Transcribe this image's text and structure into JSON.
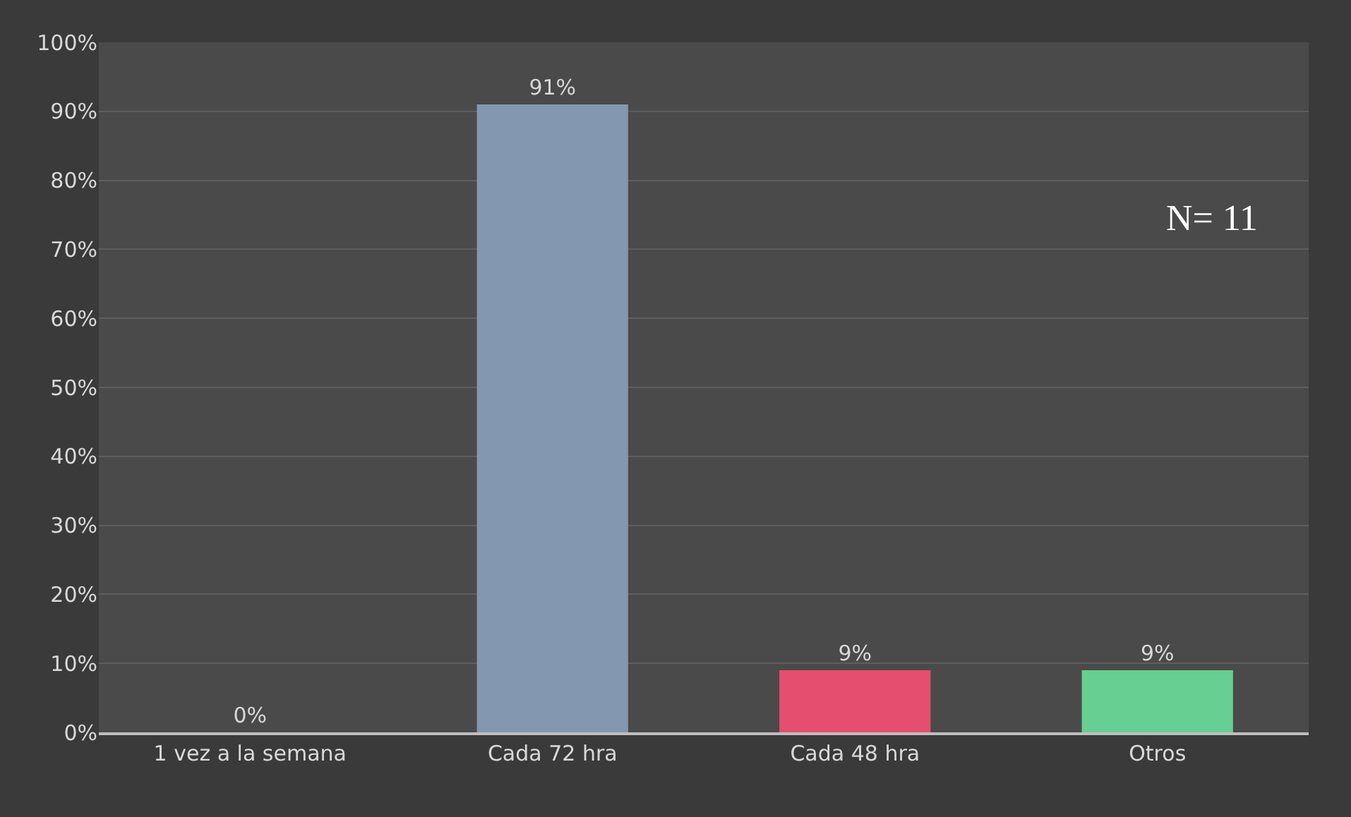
{
  "chart_data": {
    "type": "bar",
    "categories": [
      "1 vez a la semana",
      "Cada 72 hra",
      "Cada 48 hra",
      "Otros"
    ],
    "values": [
      0,
      91,
      9,
      9
    ],
    "colors": [
      "#a5a5a5",
      "#8497b0",
      "#e54e6e",
      "#66cf91"
    ],
    "data_labels": true,
    "value_labels": [
      "0%",
      "91%",
      "9%",
      "9%"
    ],
    "ylim": [
      0,
      100
    ],
    "yticks": [
      {
        "value": 0,
        "label": "0%"
      },
      {
        "value": 10,
        "label": "10%"
      },
      {
        "value": 20,
        "label": "20%"
      },
      {
        "value": 30,
        "label": "30%"
      },
      {
        "value": 40,
        "label": "40%"
      },
      {
        "value": 50,
        "label": "50%"
      },
      {
        "value": 60,
        "label": "60%"
      },
      {
        "value": 70,
        "label": "70%"
      },
      {
        "value": 80,
        "label": "80%"
      },
      {
        "value": 90,
        "label": "90%"
      },
      {
        "value": 100,
        "label": "100%"
      }
    ],
    "grid": "y",
    "annotations": [
      "N= 11"
    ]
  }
}
